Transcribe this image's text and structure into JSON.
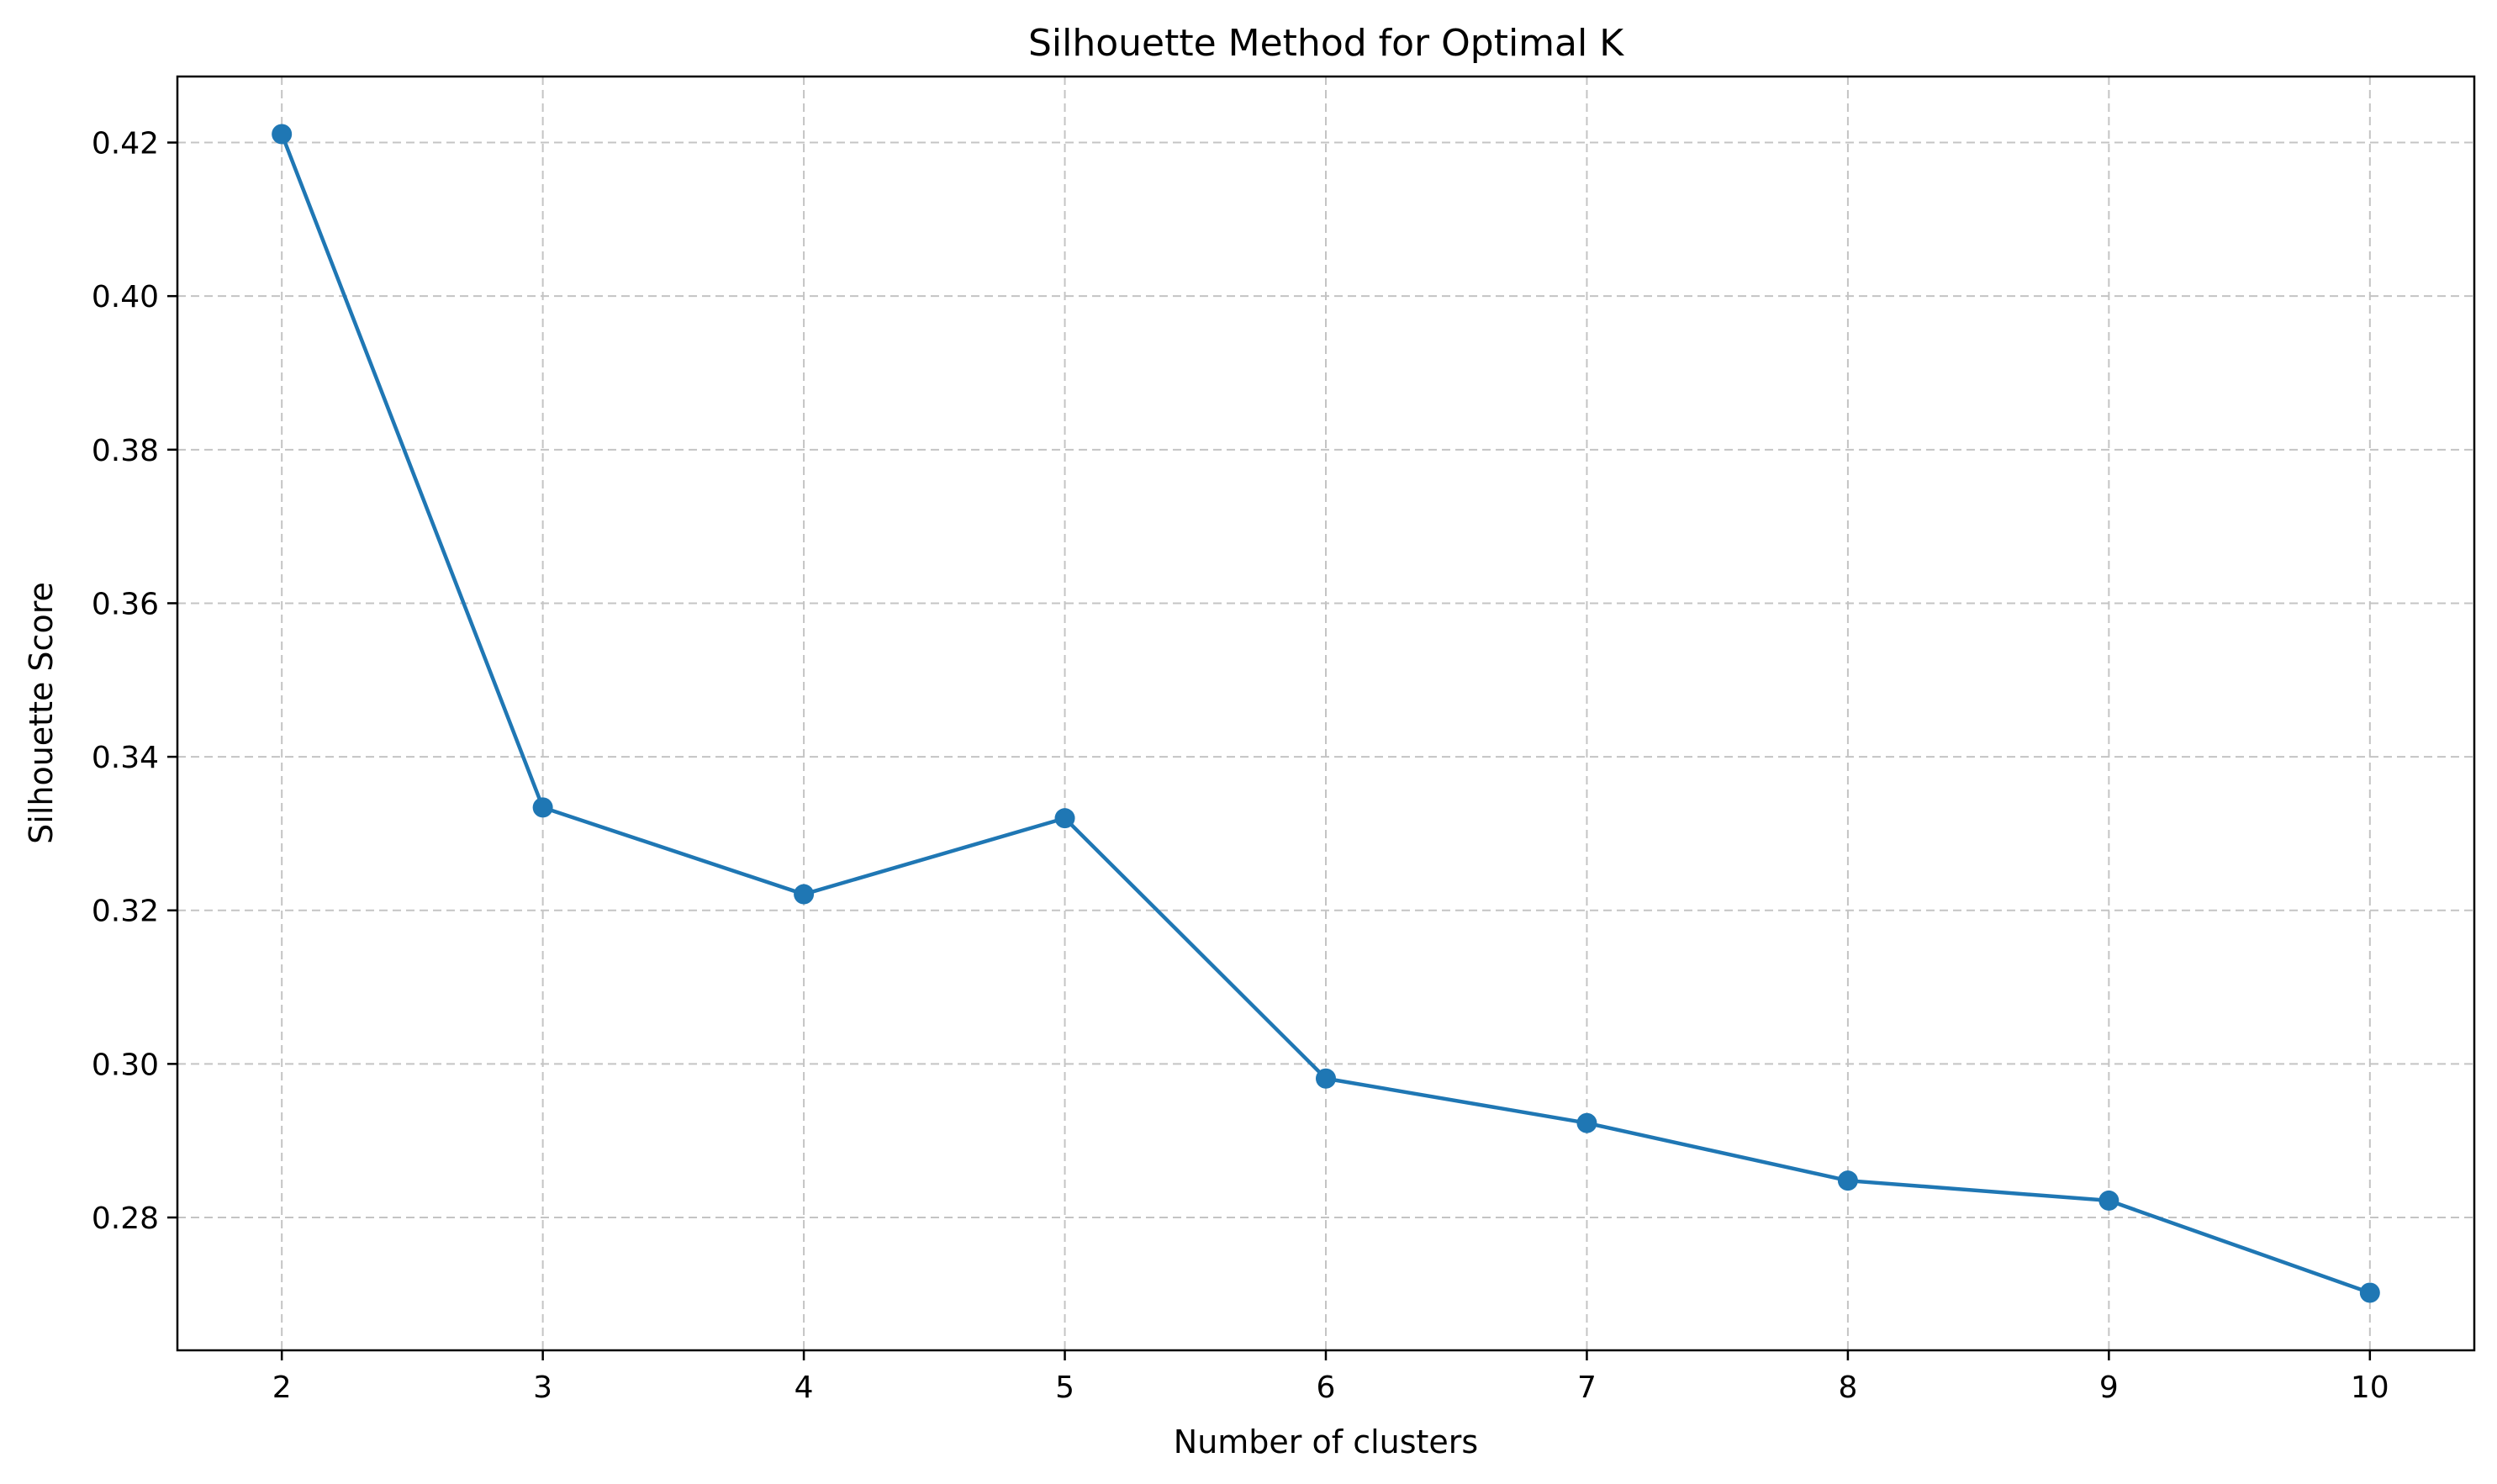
{
  "chart_data": {
    "type": "line",
    "title": "Silhouette Method for Optimal K",
    "xlabel": "Number of clusters",
    "ylabel": "Silhouette Score",
    "x": [
      2,
      3,
      4,
      5,
      6,
      7,
      8,
      9,
      10
    ],
    "series": [
      {
        "values": [
          0.4211,
          0.3334,
          0.3221,
          0.332,
          0.2981,
          0.2923,
          0.2848,
          0.2822,
          0.2702
        ],
        "color": "#1f77b4",
        "marker": "circle"
      }
    ],
    "xticks": [
      2,
      3,
      4,
      5,
      6,
      7,
      8,
      9,
      10
    ],
    "xtick_labels": [
      "2",
      "3",
      "4",
      "5",
      "6",
      "7",
      "8",
      "9",
      "10"
    ],
    "yticks": [
      0.28,
      0.3,
      0.32,
      0.34,
      0.36,
      0.38,
      0.4,
      0.42
    ],
    "ytick_labels": [
      "0.28",
      "0.30",
      "0.32",
      "0.34",
      "0.36",
      "0.38",
      "0.40",
      "0.42"
    ],
    "xlim": [
      1.6,
      10.4
    ],
    "ylim": [
      0.2627,
      0.4286
    ],
    "grid": true,
    "grid_style": "dashed"
  }
}
